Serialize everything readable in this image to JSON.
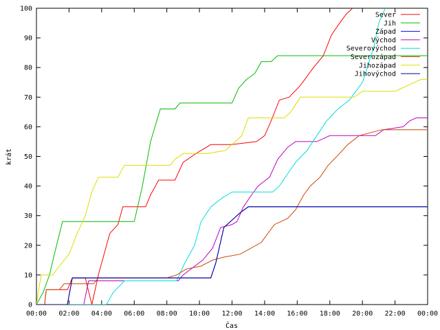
{
  "chart_data": {
    "type": "line",
    "xlabel": "Čas",
    "ylabel": "krát",
    "xlim": [
      0,
      24
    ],
    "ylim": [
      0,
      100
    ],
    "x_ticks": [
      {
        "value": 0,
        "label": "00:00"
      },
      {
        "value": 2,
        "label": "02:00"
      },
      {
        "value": 4,
        "label": "04:00"
      },
      {
        "value": 6,
        "label": "06:00"
      },
      {
        "value": 8,
        "label": "08:00"
      },
      {
        "value": 10,
        "label": "10:00"
      },
      {
        "value": 12,
        "label": "12:00"
      },
      {
        "value": 14,
        "label": "14:00"
      },
      {
        "value": 16,
        "label": "16:00"
      },
      {
        "value": 18,
        "label": "18:00"
      },
      {
        "value": 20,
        "label": "20:00"
      },
      {
        "value": 22,
        "label": "22:00"
      },
      {
        "value": 24,
        "label": "00:00"
      }
    ],
    "y_ticks": [
      0,
      10,
      20,
      30,
      40,
      50,
      60,
      70,
      80,
      90,
      100
    ],
    "grid": false,
    "legend_position": "top-right",
    "series": [
      {
        "name": "Sever",
        "color": "#ff0000",
        "points": [
          [
            0.0,
            0
          ],
          [
            0.5,
            0
          ],
          [
            0.6,
            5
          ],
          [
            1.0,
            5
          ],
          [
            1.9,
            5
          ],
          [
            2.2,
            9
          ],
          [
            3.0,
            9
          ],
          [
            3.4,
            0
          ],
          [
            3.8,
            10
          ],
          [
            4.5,
            24
          ],
          [
            5.0,
            27
          ],
          [
            5.3,
            33
          ],
          [
            6.7,
            33
          ],
          [
            7.0,
            37
          ],
          [
            7.5,
            42
          ],
          [
            8.5,
            42
          ],
          [
            9.0,
            48
          ],
          [
            9.8,
            51
          ],
          [
            10.7,
            54
          ],
          [
            12.0,
            54
          ],
          [
            13.5,
            55
          ],
          [
            14.0,
            57
          ],
          [
            14.4,
            62
          ],
          [
            14.9,
            69
          ],
          [
            15.5,
            70
          ],
          [
            16.2,
            74
          ],
          [
            17.0,
            80
          ],
          [
            17.6,
            84
          ],
          [
            18.1,
            91
          ],
          [
            18.6,
            95
          ],
          [
            19.0,
            98
          ],
          [
            19.4,
            100
          ]
        ]
      },
      {
        "name": "Jih",
        "color": "#00bb00",
        "points": [
          [
            0.0,
            0
          ],
          [
            0.4,
            4
          ],
          [
            0.8,
            10
          ],
          [
            1.1,
            17
          ],
          [
            1.6,
            28
          ],
          [
            6.0,
            28
          ],
          [
            6.5,
            40
          ],
          [
            7.0,
            55
          ],
          [
            7.6,
            66
          ],
          [
            8.5,
            66
          ],
          [
            8.8,
            68
          ],
          [
            12.0,
            68
          ],
          [
            12.4,
            73
          ],
          [
            12.9,
            76
          ],
          [
            13.4,
            78
          ],
          [
            13.8,
            82
          ],
          [
            14.4,
            82
          ],
          [
            14.8,
            84
          ],
          [
            24.0,
            84
          ]
        ]
      },
      {
        "name": "Západ",
        "color": "#0000ff",
        "points": [
          [
            0.0,
            0
          ],
          [
            1.9,
            0
          ],
          [
            2.2,
            9
          ],
          [
            10.7,
            9
          ],
          [
            11.0,
            14
          ],
          [
            11.5,
            26
          ],
          [
            12.5,
            31
          ],
          [
            13.0,
            33
          ],
          [
            24.0,
            33
          ]
        ]
      },
      {
        "name": "Východ",
        "color": "#bb00bb",
        "points": [
          [
            0.0,
            0
          ],
          [
            2.9,
            0
          ],
          [
            3.2,
            8
          ],
          [
            8.7,
            8
          ],
          [
            9.0,
            10
          ],
          [
            10.2,
            15
          ],
          [
            10.8,
            19
          ],
          [
            11.3,
            26
          ],
          [
            12.0,
            27
          ],
          [
            12.3,
            28
          ],
          [
            12.7,
            33
          ],
          [
            13.2,
            37
          ],
          [
            13.6,
            40
          ],
          [
            14.3,
            43
          ],
          [
            14.8,
            49
          ],
          [
            15.4,
            53
          ],
          [
            15.9,
            55
          ],
          [
            17.2,
            55
          ],
          [
            17.6,
            56
          ],
          [
            18.0,
            57
          ],
          [
            20.8,
            57
          ],
          [
            21.3,
            59
          ],
          [
            22.5,
            60
          ],
          [
            22.9,
            62
          ],
          [
            23.3,
            63
          ],
          [
            24.0,
            63
          ]
        ]
      },
      {
        "name": "Severovýchod",
        "color": "#00dddd",
        "points": [
          [
            0.0,
            0
          ],
          [
            4.3,
            0
          ],
          [
            4.7,
            4
          ],
          [
            5.4,
            8
          ],
          [
            8.6,
            8
          ],
          [
            9.1,
            14
          ],
          [
            9.7,
            20
          ],
          [
            10.1,
            28
          ],
          [
            10.7,
            33
          ],
          [
            11.4,
            36
          ],
          [
            12.0,
            38
          ],
          [
            14.5,
            38
          ],
          [
            14.9,
            40
          ],
          [
            15.4,
            44
          ],
          [
            15.9,
            48
          ],
          [
            16.6,
            52
          ],
          [
            17.2,
            57
          ],
          [
            17.8,
            62
          ],
          [
            18.5,
            66
          ],
          [
            19.2,
            69
          ],
          [
            19.6,
            72
          ],
          [
            20.0,
            75
          ],
          [
            20.3,
            80
          ],
          [
            20.7,
            87
          ],
          [
            21.0,
            95
          ],
          [
            21.4,
            100
          ]
        ]
      },
      {
        "name": "Severozápad",
        "color": "#cc4400",
        "points": [
          [
            0.0,
            0
          ],
          [
            0.5,
            0
          ],
          [
            0.6,
            5
          ],
          [
            1.4,
            5
          ],
          [
            1.7,
            7
          ],
          [
            3.5,
            7
          ],
          [
            3.8,
            9
          ],
          [
            8.0,
            9
          ],
          [
            8.6,
            10
          ],
          [
            9.2,
            12
          ],
          [
            10.1,
            13
          ],
          [
            10.8,
            15
          ],
          [
            11.5,
            16
          ],
          [
            12.5,
            17
          ],
          [
            13.8,
            21
          ],
          [
            14.6,
            27
          ],
          [
            15.4,
            29
          ],
          [
            15.9,
            32
          ],
          [
            16.4,
            37
          ],
          [
            16.8,
            40
          ],
          [
            17.4,
            43
          ],
          [
            17.9,
            47
          ],
          [
            18.6,
            51
          ],
          [
            19.1,
            54
          ],
          [
            19.8,
            57
          ],
          [
            21.2,
            59
          ],
          [
            24.0,
            59
          ]
        ]
      },
      {
        "name": "Jihozápad",
        "color": "#dddd00",
        "points": [
          [
            0.0,
            0
          ],
          [
            0.1,
            4
          ],
          [
            0.3,
            10
          ],
          [
            1.0,
            10
          ],
          [
            1.4,
            13
          ],
          [
            2.0,
            17
          ],
          [
            2.5,
            24
          ],
          [
            3.0,
            30
          ],
          [
            3.4,
            38
          ],
          [
            3.8,
            43
          ],
          [
            5.0,
            43
          ],
          [
            5.4,
            47
          ],
          [
            8.2,
            47
          ],
          [
            8.5,
            49
          ],
          [
            9.0,
            51
          ],
          [
            10.5,
            51
          ],
          [
            11.6,
            52
          ],
          [
            12.6,
            57
          ],
          [
            13.0,
            63
          ],
          [
            14.9,
            63
          ],
          [
            15.2,
            63
          ],
          [
            15.6,
            65
          ],
          [
            16.2,
            70
          ],
          [
            19.5,
            70
          ],
          [
            20.0,
            72
          ],
          [
            22.0,
            72
          ],
          [
            23.6,
            76
          ],
          [
            24.0,
            76
          ]
        ]
      },
      {
        "name": "Jihovýchod",
        "color": "#000099",
        "points": [
          [
            0.0,
            0
          ],
          [
            1.9,
            0
          ],
          [
            2.2,
            9
          ],
          [
            10.7,
            9
          ],
          [
            11.0,
            14
          ],
          [
            11.5,
            26
          ],
          [
            12.5,
            31
          ],
          [
            13.0,
            33
          ],
          [
            24.0,
            33
          ]
        ]
      }
    ]
  }
}
